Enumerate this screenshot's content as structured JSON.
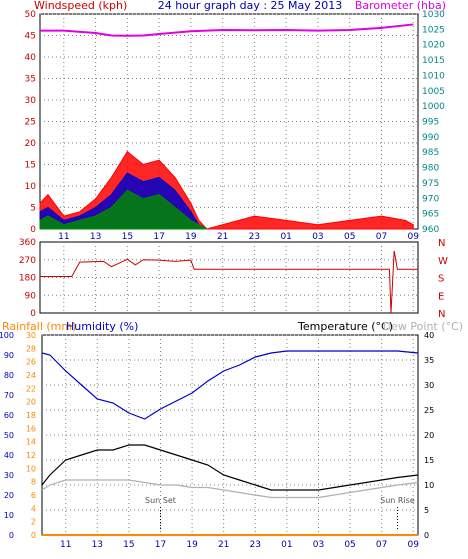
{
  "panels": {
    "wind": {
      "title": "24 hour graph day : 25 May 2013",
      "left_label": "Windspeed (kph)",
      "right_label": "Barometer (hba)",
      "y_ticks": [
        "0",
        "5",
        "10",
        "15",
        "20",
        "25",
        "30",
        "35",
        "40",
        "45",
        "50"
      ],
      "baro_ticks": [
        "960",
        "965",
        "970",
        "975",
        "980",
        "985",
        "990",
        "995",
        "1000",
        "1005",
        "1010",
        "1015",
        "1020",
        "1025",
        "1030"
      ],
      "x_ticks": [
        "11",
        "13",
        "15",
        "17",
        "19",
        "21",
        "23",
        "01",
        "03",
        "05",
        "07",
        "09"
      ]
    },
    "direction": {
      "y_ticks": [
        "0",
        "90",
        "180",
        "270",
        "360"
      ],
      "compass": [
        "N",
        "W",
        "S",
        "E",
        "N"
      ]
    },
    "temp": {
      "rain_label": "Rainfall (mm)",
      "humidity_label": "Humidity (%)",
      "temp_label": "Temperature (°C)",
      "dew_label": "Dew Point (°C)",
      "rain_ticks": [
        "0",
        "2",
        "4",
        "6",
        "8",
        "10",
        "12",
        "14",
        "16",
        "18",
        "20",
        "22",
        "24",
        "26",
        "28",
        "30"
      ],
      "hum_ticks": [
        "0",
        "10",
        "20",
        "30",
        "40",
        "50",
        "60",
        "70",
        "80",
        "90",
        "100"
      ],
      "temp_ticks": [
        "0",
        "5",
        "10",
        "15",
        "20",
        "25",
        "30",
        "35",
        "40"
      ],
      "sunset_label": "Sun Set",
      "sunrise_label": "Sun Rise"
    }
  },
  "colors": {
    "wind_gust": "#ff0000",
    "wind_avg": "#0000cc",
    "wind_low": "#008800",
    "barometer": "#e000e0",
    "direction": "#cc0000",
    "humidity": "#0000cc",
    "temperature": "#000000",
    "dew_point": "#b0b0b0",
    "rainfall": "#ff8800",
    "axis_left": "#cc0000",
    "axis_right": "#008888",
    "title": "#0000aa"
  },
  "chart_data": [
    {
      "type": "line",
      "name": "wind",
      "x_range_hours": [
        9.5,
        33.3
      ],
      "ylim": [
        0,
        50
      ],
      "barometer_ylim": [
        960,
        1030
      ],
      "series": [
        {
          "name": "gust",
          "x": [
            9.5,
            10,
            11,
            12,
            13,
            14,
            15,
            16,
            17,
            18,
            19,
            19.5,
            20,
            21,
            23,
            25,
            27,
            29,
            31,
            32.5,
            33
          ],
          "values": [
            6,
            8,
            3,
            4,
            7,
            12,
            18,
            15,
            16,
            12,
            6,
            2,
            0,
            1,
            3,
            2,
            1,
            2,
            3,
            2,
            1
          ]
        },
        {
          "name": "average",
          "x": [
            9.5,
            10,
            11,
            12,
            13,
            14,
            15,
            16,
            17,
            18,
            19,
            19.5,
            20
          ],
          "values": [
            4,
            5,
            2,
            3,
            5,
            8,
            13,
            11,
            12,
            9,
            4,
            1,
            0
          ]
        },
        {
          "name": "low",
          "x": [
            9.5,
            10,
            11,
            12,
            13,
            14,
            15,
            16,
            17,
            18,
            19,
            19.5,
            20
          ],
          "values": [
            2,
            3,
            1,
            2,
            3,
            5,
            9,
            7,
            8,
            5,
            2,
            1,
            0
          ]
        },
        {
          "name": "barometer",
          "x": [
            9.5,
            11,
            13,
            14,
            15,
            16,
            17,
            19,
            21,
            23,
            25,
            27,
            29,
            31,
            33
          ],
          "values": [
            1024.6,
            1024.6,
            1023.8,
            1023.0,
            1022.9,
            1023.0,
            1023.5,
            1024.4,
            1024.8,
            1024.7,
            1024.8,
            1024.6,
            1024.8,
            1025.5,
            1026.6
          ]
        }
      ]
    },
    {
      "type": "line",
      "name": "wind_direction",
      "x_range_hours": [
        9.5,
        33.3
      ],
      "ylim": [
        0,
        360
      ],
      "series": [
        {
          "name": "direction",
          "x": [
            9.5,
            11.5,
            12,
            13.5,
            14,
            15,
            15.5,
            16,
            17,
            18,
            19,
            19.2,
            25,
            31.5,
            31.6,
            31.8,
            32,
            33.3
          ],
          "values": [
            185,
            185,
            258,
            262,
            235,
            272,
            244,
            270,
            268,
            262,
            268,
            222,
            222,
            222,
            0,
            315,
            222,
            222
          ]
        }
      ]
    },
    {
      "type": "line",
      "name": "temperature_humidity",
      "x_range_hours": [
        9.5,
        33.3
      ],
      "ylim_humidity": [
        0,
        100
      ],
      "ylim_temperature": [
        0,
        40
      ],
      "ylim_rain": [
        0,
        30
      ],
      "series": [
        {
          "name": "humidity",
          "x": [
            9.5,
            10,
            11,
            12,
            13,
            14,
            15,
            16,
            17,
            18,
            19,
            20,
            21,
            22,
            23,
            24,
            25,
            26,
            27,
            28,
            29,
            30,
            31,
            32,
            33.3
          ],
          "values": [
            91,
            90,
            82,
            75,
            68,
            66,
            61,
            58,
            63,
            67,
            71,
            77,
            82,
            85,
            89,
            91,
            92,
            92,
            92,
            92,
            92,
            92,
            92,
            92,
            91
          ]
        },
        {
          "name": "temperature",
          "x": [
            9.5,
            10,
            11,
            12,
            13,
            14,
            15,
            16,
            17,
            18,
            19,
            20,
            21,
            22,
            23,
            24,
            25,
            26,
            27,
            28,
            29,
            30,
            31,
            32,
            33.3
          ],
          "values": [
            10,
            12,
            15,
            16,
            17,
            17,
            18,
            18,
            17,
            16,
            15,
            14,
            12,
            11,
            10,
            9,
            9,
            9,
            9,
            9.5,
            10,
            10.5,
            11,
            11.5,
            12
          ]
        },
        {
          "name": "dew_point",
          "x": [
            9.5,
            10,
            11,
            12,
            13,
            14,
            15,
            16,
            17,
            18,
            19,
            20,
            21,
            22,
            23,
            24,
            25,
            26,
            27,
            28,
            29,
            30,
            31,
            32,
            33.3
          ],
          "values": [
            9,
            10,
            11,
            11,
            11,
            11,
            11,
            10.5,
            10,
            10,
            9.5,
            9.5,
            9,
            8.5,
            8,
            7.5,
            7.5,
            7.5,
            7.5,
            8,
            8.5,
            9,
            9.5,
            10,
            10.5
          ]
        },
        {
          "name": "rainfall",
          "x": [
            9.5,
            33.3
          ],
          "values": [
            0,
            0
          ]
        }
      ],
      "markers": [
        {
          "label": "Sun Set",
          "x": 17.0
        },
        {
          "label": "Sun Rise",
          "x": 32.0
        }
      ]
    }
  ]
}
